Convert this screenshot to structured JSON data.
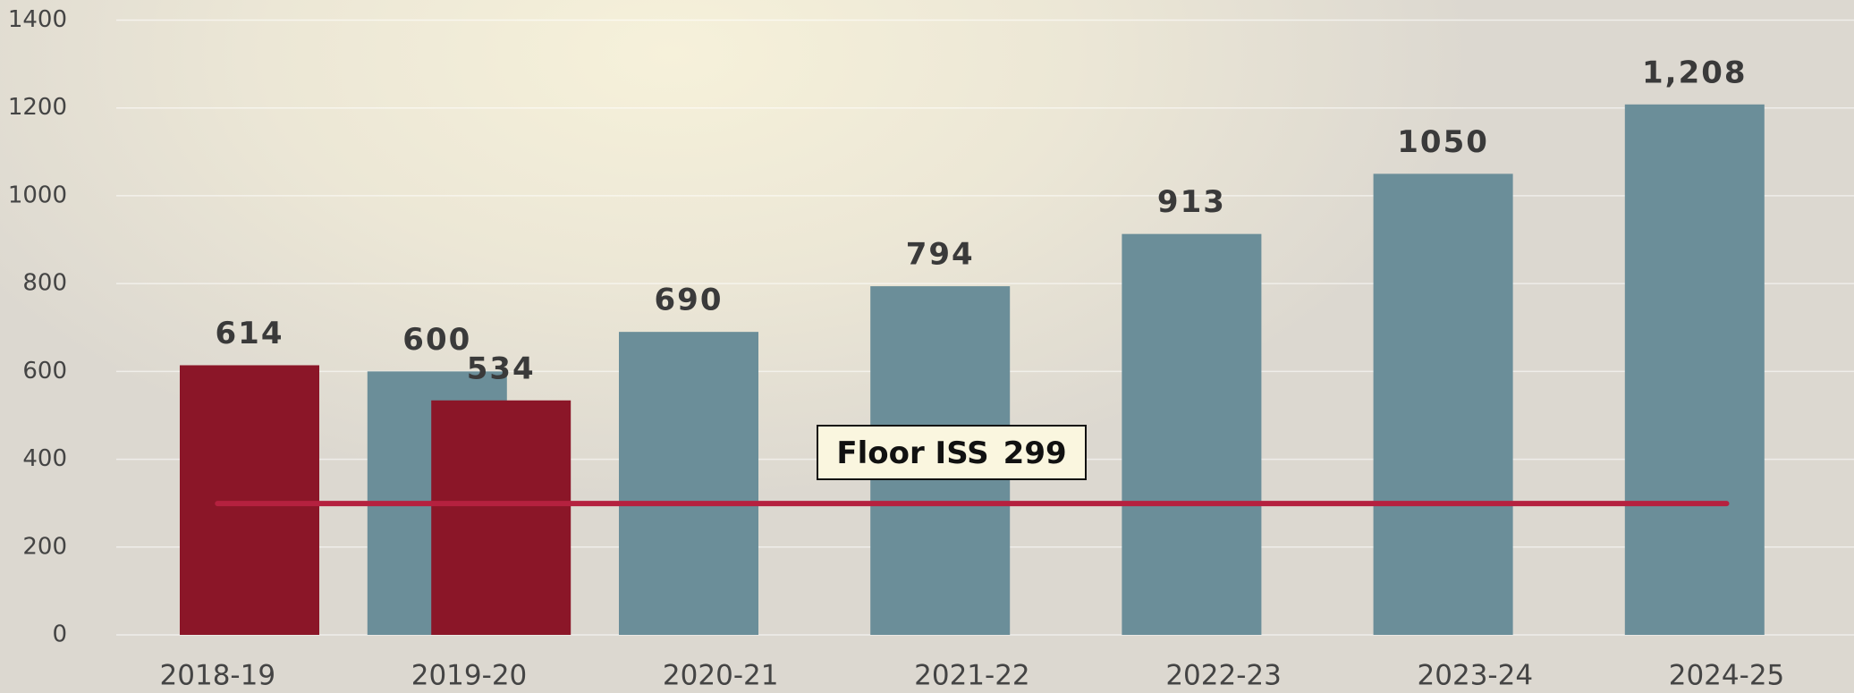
{
  "chart_data": {
    "type": "bar",
    "categories": [
      "2018-19",
      "2019-20",
      "2020-21",
      "2021-22",
      "2022-23",
      "2023-24",
      "2024-25"
    ],
    "series": [
      {
        "color": "#6b8e99",
        "values": [
          null,
          600,
          690,
          794,
          913,
          1050,
          1208
        ],
        "value_labels": [
          null,
          "600",
          "690",
          "794",
          "913",
          "1050",
          "1,208"
        ]
      },
      {
        "color": "#8b1628",
        "values": [
          614,
          534,
          null,
          null,
          null,
          null,
          null
        ]
      }
    ],
    "floor": {
      "label": "Floor ISS",
      "value": 299,
      "color": "#b5213f"
    },
    "ylim": [
      0,
      1400
    ],
    "yticks": [
      0,
      200,
      400,
      600,
      800,
      1000,
      1200,
      1400
    ],
    "grid": true
  }
}
